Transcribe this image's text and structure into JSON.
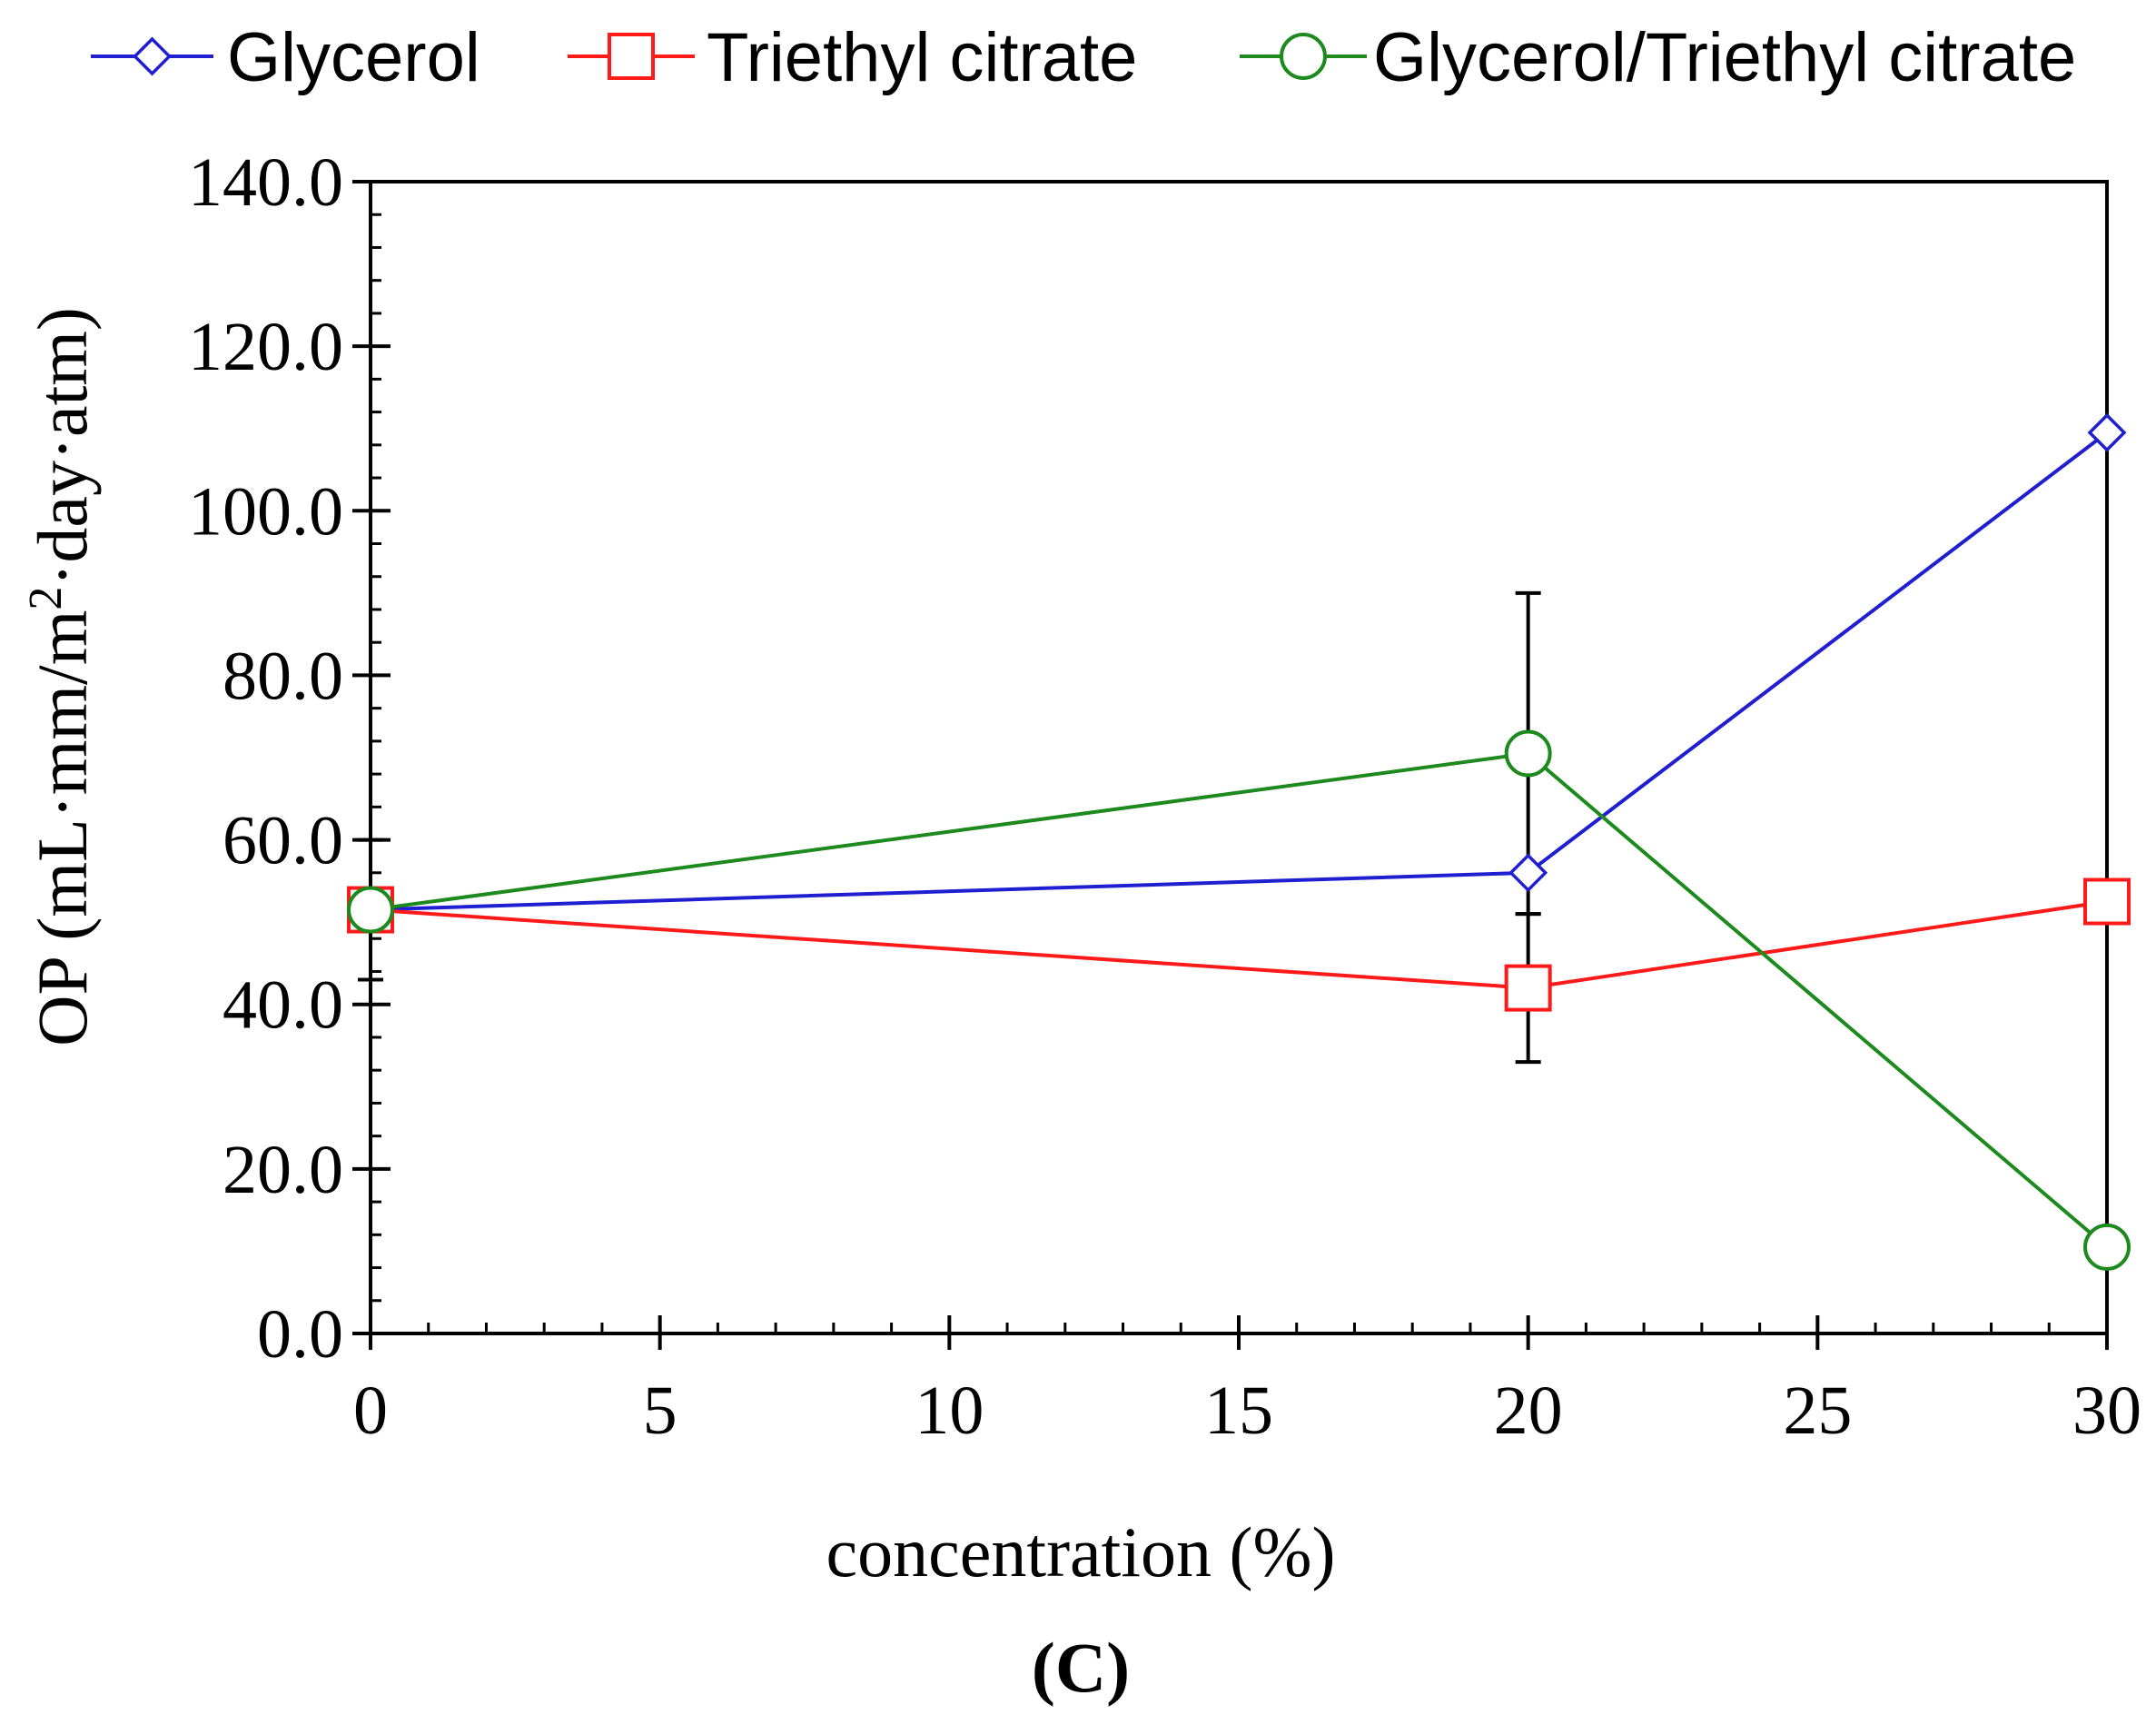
{
  "chart_data": {
    "type": "line",
    "panel_label": "(C)",
    "xlabel": "concentration (%)",
    "ylabel": "OP (mL·mm/m²·day·atm)",
    "ylabel_parts": {
      "prefix": "OP (mL·mm/m",
      "sup": "2",
      "suffix": "·day·atm)"
    },
    "xlim": [
      0,
      30
    ],
    "ylim": [
      0,
      140
    ],
    "x_ticks": [
      0,
      5,
      10,
      15,
      20,
      25,
      30
    ],
    "y_ticks": [
      0,
      20,
      40,
      60,
      80,
      100,
      120,
      140
    ],
    "y_tick_labels": [
      "0.0",
      "20.0",
      "40.0",
      "60.0",
      "80.0",
      "100.0",
      "120.0",
      "140.0"
    ],
    "x_tick_labels": [
      "0",
      "5",
      "10",
      "15",
      "20",
      "25",
      "30"
    ],
    "legend_position": "top",
    "series": [
      {
        "name": "Glycerol",
        "color": "#1f1fd1",
        "marker": "diamond",
        "x": [
          0,
          20,
          30
        ],
        "y": [
          51.5,
          56,
          109.5
        ],
        "err": [
          0,
          0,
          0
        ]
      },
      {
        "name": "Triethyl citrate",
        "color": "#ff1a1a",
        "marker": "square",
        "x": [
          0,
          20,
          30
        ],
        "y": [
          51.5,
          42,
          52.5
        ],
        "err": [
          0,
          9,
          0
        ]
      },
      {
        "name": "Glycerol/Triethyl citrate",
        "color": "#1c8a1c",
        "marker": "circle",
        "x": [
          0,
          20,
          30
        ],
        "y": [
          51.5,
          70.5,
          10.5
        ],
        "err": [
          8.5,
          19.5,
          0
        ]
      }
    ]
  }
}
